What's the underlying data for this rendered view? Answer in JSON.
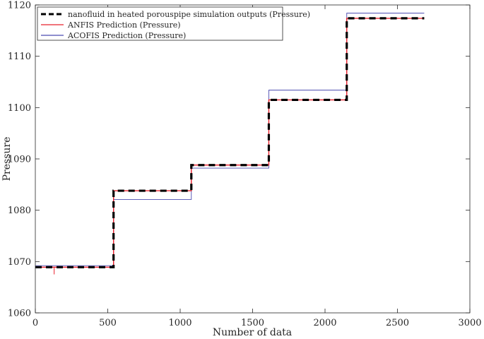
{
  "chart_data": {
    "type": "line",
    "title": "",
    "xlabel": "Number of data",
    "ylabel": "Pressure",
    "xlim": [
      0,
      3000
    ],
    "ylim": [
      1060,
      1120
    ],
    "xticks": [
      0,
      500,
      1000,
      1500,
      2000,
      2500,
      3000
    ],
    "yticks": [
      1060,
      1070,
      1080,
      1090,
      1100,
      1110,
      1120
    ],
    "grid": false,
    "legend_position": "top-left",
    "series": [
      {
        "name": "nanofluid in heated porouspipe simulation outputs (Pressure)",
        "color": "#000000",
        "style": "dashed",
        "steps": [
          {
            "x_start": 0,
            "x_end": 540,
            "y": 1068.9
          },
          {
            "x_start": 540,
            "x_end": 1077,
            "y": 1083.8
          },
          {
            "x_start": 1077,
            "x_end": 1612,
            "y": 1088.8
          },
          {
            "x_start": 1612,
            "x_end": 2150,
            "y": 1101.5
          },
          {
            "x_start": 2150,
            "x_end": 2685,
            "y": 1117.4
          }
        ]
      },
      {
        "name": "ANFIS Prediction (Pressure)",
        "color": "#e8212c",
        "style": "solid",
        "steps": [
          {
            "x_start": 0,
            "x_end": 540,
            "y": 1068.9
          },
          {
            "x_start": 540,
            "x_end": 1077,
            "y": 1083.8
          },
          {
            "x_start": 1077,
            "x_end": 1612,
            "y": 1088.8
          },
          {
            "x_start": 1612,
            "x_end": 2150,
            "y": 1101.5
          },
          {
            "x_start": 2150,
            "x_end": 2685,
            "y": 1117.4
          }
        ],
        "spikes": [
          {
            "x": 130,
            "y": 1067.5
          }
        ]
      },
      {
        "name": "ACOFIS Prediction (Pressure)",
        "color": "#4b4bb0",
        "style": "solid",
        "steps": [
          {
            "x_start": 0,
            "x_end": 540,
            "y": 1069.2
          },
          {
            "x_start": 540,
            "x_end": 1077,
            "y": 1082.1
          },
          {
            "x_start": 1077,
            "x_end": 1612,
            "y": 1088.2
          },
          {
            "x_start": 1612,
            "x_end": 2150,
            "y": 1103.4
          },
          {
            "x_start": 2150,
            "x_end": 2685,
            "y": 1118.4
          }
        ]
      }
    ]
  }
}
